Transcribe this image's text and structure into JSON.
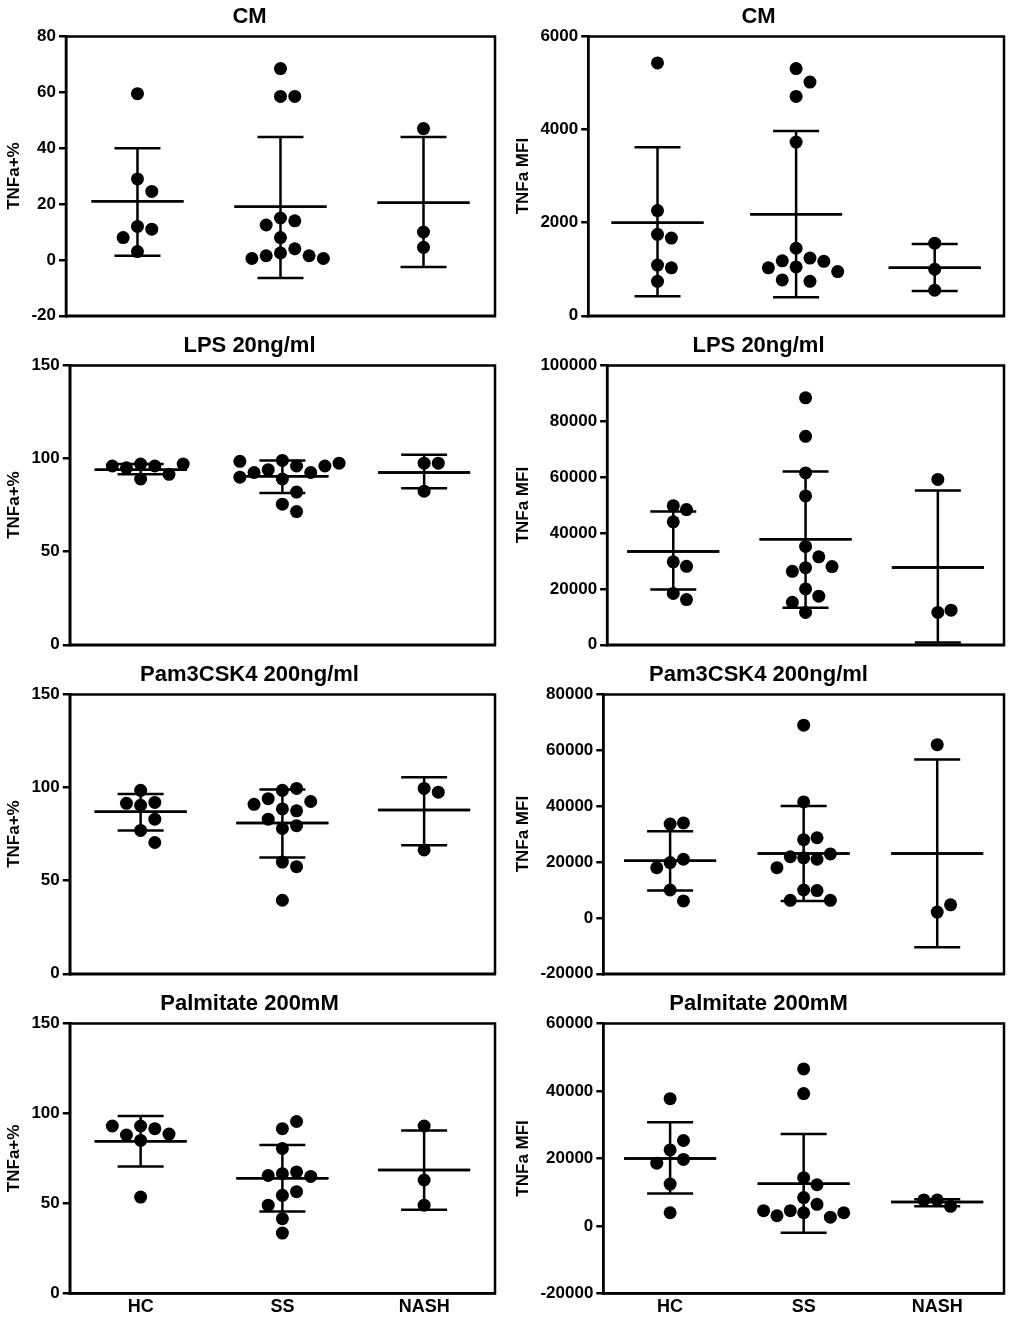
{
  "chart_data": [
    {
      "type": "scatter",
      "title": "CM",
      "ylabel": "TNFa+%",
      "categories": [
        "HC",
        "SS",
        "NASH"
      ],
      "ylim": [
        -20,
        80
      ],
      "yticks": [
        -20,
        0,
        20,
        40,
        60,
        80
      ],
      "tick_labels": "y",
      "series": [
        {
          "color": "#000000",
          "marker": "circle",
          "x": [
            "HC",
            "HC",
            "HC",
            "HC",
            "HC",
            "HC",
            "HC",
            "SS",
            "SS",
            "SS",
            "SS",
            "SS",
            "SS",
            "SS",
            "SS",
            "SS",
            "SS",
            "SS",
            "SS",
            "SS",
            "NASH",
            "NASH",
            "NASH"
          ],
          "values": [
            59.5,
            29,
            24.5,
            12,
            11,
            8,
            3,
            68.5,
            58.5,
            58.5,
            15,
            14,
            12.5,
            8,
            4,
            2.5,
            1.5,
            1.5,
            0.5,
            0.5,
            47,
            10,
            4.5
          ]
        },
        {
          "type": "box",
          "color": "#000000",
          "boxes": [
            {
              "low": 1.5,
              "q1": 21,
              "median": 21,
              "q3": 21,
              "high": 40
            },
            {
              "low": -6.5,
              "q1": 19,
              "median": 19,
              "q3": 19,
              "high": 44
            },
            {
              "low": -2.5,
              "q1": 20.5,
              "median": 20.5,
              "q3": 20.5,
              "high": 44
            }
          ]
        }
      ]
    },
    {
      "type": "scatter",
      "title": "CM",
      "ylabel": "TNFa MFI",
      "categories": [
        "HC",
        "SS",
        "NASH"
      ],
      "ylim": [
        0,
        6000
      ],
      "yticks": [
        0,
        2000,
        4000,
        6000
      ],
      "tick_labels": "y",
      "series": [
        {
          "color": "#000000",
          "marker": "circle",
          "x": [
            "HC",
            "HC",
            "HC",
            "HC",
            "HC",
            "HC",
            "HC",
            "SS",
            "SS",
            "SS",
            "SS",
            "SS",
            "SS",
            "SS",
            "SS",
            "SS",
            "SS",
            "SS",
            "SS",
            "SS",
            "NASH",
            "NASH",
            "NASH"
          ],
          "values": [
            5430,
            2260,
            1750,
            1670,
            1090,
            1030,
            740,
            5310,
            5020,
            4710,
            3730,
            1450,
            1240,
            1180,
            1170,
            1050,
            1030,
            950,
            740,
            770,
            1560,
            1000,
            550
          ]
        },
        {
          "type": "box",
          "color": "#000000",
          "boxes": [
            {
              "low": 420,
              "q1": 2000,
              "median": 2000,
              "q3": 2000,
              "high": 3620
            },
            {
              "low": 400,
              "q1": 2180,
              "median": 2180,
              "q3": 2180,
              "high": 3970
            },
            {
              "low": 530,
              "q1": 1030,
              "median": 1030,
              "q3": 1030,
              "high": 1540
            }
          ]
        }
      ]
    },
    {
      "type": "scatter",
      "title": "LPS 20ng/ml",
      "ylabel": "TNFa+%",
      "categories": [
        "HC",
        "SS",
        "NASH"
      ],
      "ylim": [
        0,
        150
      ],
      "yticks": [
        0,
        50,
        100,
        150
      ],
      "tick_labels": "y",
      "series": [
        {
          "color": "#000000",
          "marker": "circle",
          "x": [
            "HC",
            "HC",
            "HC",
            "HC",
            "HC",
            "HC",
            "HC",
            "SS",
            "SS",
            "SS",
            "SS",
            "SS",
            "SS",
            "SS",
            "SS",
            "SS",
            "SS",
            "SS",
            "SS",
            "SS",
            "NASH",
            "NASH",
            "NASH"
          ],
          "values": [
            97,
            96,
            95,
            89,
            91.5,
            96,
            97,
            99,
            96,
            94,
            89,
            92.5,
            92.5,
            96,
            90,
            97.5,
            98.5,
            82,
            75.5,
            71.5,
            97.5,
            97.5,
            82.5
          ]
        },
        {
          "type": "box",
          "color": "#000000",
          "boxes": [
            {
              "low": 91.5,
              "q1": 94,
              "median": 94,
              "q3": 94,
              "high": 97
            },
            {
              "low": 81.5,
              "q1": 90.5,
              "median": 90.5,
              "q3": 90.5,
              "high": 99
            },
            {
              "low": 84,
              "q1": 92.5,
              "median": 92.5,
              "q3": 92.5,
              "high": 102
            }
          ]
        }
      ]
    },
    {
      "type": "scatter",
      "title": "LPS 20ng/ml",
      "ylabel": "TNFa MFI",
      "categories": [
        "HC",
        "SS",
        "NASH"
      ],
      "ylim": [
        0,
        100000
      ],
      "yticks": [
        0,
        20000,
        40000,
        60000,
        80000,
        100000
      ],
      "tick_labels": "y",
      "series": [
        {
          "color": "#000000",
          "marker": "circle",
          "x": [
            "HC",
            "HC",
            "HC",
            "HC",
            "HC",
            "HC",
            "HC",
            "SS",
            "SS",
            "SS",
            "SS",
            "SS",
            "SS",
            "SS",
            "SS",
            "SS",
            "SS",
            "SS",
            "SS",
            "SS",
            "NASH",
            "NASH",
            "NASH"
          ],
          "values": [
            49800,
            48400,
            44000,
            29700,
            28100,
            18400,
            16200,
            88400,
            74600,
            61500,
            53300,
            35200,
            31500,
            27600,
            26300,
            28000,
            20000,
            17400,
            15200,
            11600,
            59200,
            11600,
            12400
          ]
        },
        {
          "type": "box",
          "color": "#000000",
          "boxes": [
            {
              "low": 19800,
              "q1": 33400,
              "median": 33400,
              "q3": 33400,
              "high": 47700
            },
            {
              "low": 13300,
              "q1": 37800,
              "median": 37800,
              "q3": 37800,
              "high": 62000
            },
            {
              "low": 800,
              "q1": 27700,
              "median": 27700,
              "q3": 27700,
              "high": 55200
            }
          ]
        }
      ]
    },
    {
      "type": "scatter",
      "title": "Pam3CSK4 200ng/ml",
      "ylabel": "TNFa+%",
      "categories": [
        "HC",
        "SS",
        "NASH"
      ],
      "ylim": [
        0,
        150
      ],
      "yticks": [
        0,
        50,
        100,
        150
      ],
      "tick_labels": "y",
      "series": [
        {
          "color": "#000000",
          "marker": "circle",
          "x": [
            "HC",
            "HC",
            "HC",
            "HC",
            "HC",
            "HC",
            "HC",
            "SS",
            "SS",
            "SS",
            "SS",
            "SS",
            "SS",
            "SS",
            "SS",
            "SS",
            "SS",
            "SS",
            "SS",
            "SS",
            "NASH",
            "NASH",
            "NASH"
          ],
          "values": [
            98.5,
            92,
            90.5,
            91.5,
            77,
            70.5,
            83,
            98.5,
            99.5,
            94,
            88.5,
            92.5,
            87.5,
            91,
            83,
            78,
            79.5,
            60,
            57.5,
            39.5,
            99.5,
            97.5,
            66.5
          ]
        },
        {
          "type": "box",
          "color": "#000000",
          "boxes": [
            {
              "low": 77,
              "q1": 87,
              "median": 87,
              "q3": 87,
              "high": 96.5
            },
            {
              "low": 62.5,
              "q1": 81,
              "median": 81,
              "q3": 81,
              "high": 99
            },
            {
              "low": 69,
              "q1": 88,
              "median": 88,
              "q3": 88,
              "high": 105.5
            }
          ]
        }
      ]
    },
    {
      "type": "scatter",
      "title": "Pam3CSK4 200ng/ml",
      "ylabel": "TNFa MFI",
      "categories": [
        "HC",
        "SS",
        "NASH"
      ],
      "ylim": [
        -20000,
        80000
      ],
      "yticks": [
        -20000,
        0,
        20000,
        40000,
        60000,
        80000
      ],
      "tick_labels": "y",
      "series": [
        {
          "color": "#000000",
          "marker": "circle",
          "x": [
            "HC",
            "HC",
            "HC",
            "HC",
            "HC",
            "HC",
            "HC",
            "SS",
            "SS",
            "SS",
            "SS",
            "SS",
            "SS",
            "SS",
            "SS",
            "SS",
            "SS",
            "SS",
            "SS",
            "SS",
            "NASH",
            "NASH",
            "NASH"
          ],
          "values": [
            33600,
            34000,
            19800,
            21000,
            18000,
            10000,
            6100,
            69000,
            41500,
            28000,
            28700,
            21500,
            21000,
            21900,
            22900,
            18000,
            10000,
            9800,
            6300,
            6300,
            62000,
            2100,
            4700
          ]
        },
        {
          "type": "box",
          "color": "#000000",
          "boxes": [
            {
              "low": 9800,
              "q1": 20500,
              "median": 20500,
              "q3": 20500,
              "high": 31000
            },
            {
              "low": 6100,
              "q1": 23100,
              "median": 23100,
              "q3": 23100,
              "high": 40100
            },
            {
              "low": -10500,
              "q1": 23100,
              "median": 23100,
              "q3": 23100,
              "high": 56700
            }
          ]
        }
      ]
    },
    {
      "type": "scatter",
      "title": "Palmitate 200mM",
      "ylabel": "TNFa+%",
      "categories": [
        "HC",
        "SS",
        "NASH"
      ],
      "ylim": [
        0,
        150
      ],
      "yticks": [
        0,
        50,
        100,
        150
      ],
      "series": [
        {
          "color": "#000000",
          "marker": "circle",
          "x": [
            "HC",
            "HC",
            "HC",
            "HC",
            "HC",
            "HC",
            "HC",
            "SS",
            "SS",
            "SS",
            "SS",
            "SS",
            "SS",
            "SS",
            "SS",
            "SS",
            "SS",
            "SS",
            "SS",
            "NASH",
            "NASH",
            "NASH"
          ],
          "values": [
            93,
            91.5,
            88,
            85,
            88.5,
            93,
            53.5,
            91.5,
            95.5,
            80.5,
            66.5,
            67.5,
            65.5,
            65,
            54.5,
            56.5,
            49,
            41.5,
            33.5,
            93,
            63,
            49
          ]
        },
        {
          "type": "box",
          "color": "#000000",
          "boxes": [
            {
              "low": 70.5,
              "q1": 84.5,
              "median": 84.5,
              "q3": 84.5,
              "high": 98.5
            },
            {
              "low": 45.5,
              "q1": 64,
              "median": 64,
              "q3": 64,
              "high": 82.5
            },
            {
              "low": 46.5,
              "q1": 68.5,
              "median": 68.5,
              "q3": 68.5,
              "high": 90.5
            }
          ]
        }
      ]
    },
    {
      "type": "scatter",
      "title": "Palmitate 200mM",
      "ylabel": "TNFa MFI",
      "categories": [
        "HC",
        "SS",
        "NASH"
      ],
      "ylim": [
        -20000,
        60000
      ],
      "yticks": [
        -20000,
        0,
        20000,
        40000,
        60000
      ],
      "series": [
        {
          "color": "#000000",
          "marker": "circle",
          "x": [
            "HC",
            "HC",
            "HC",
            "HC",
            "HC",
            "HC",
            "HC",
            "SS",
            "SS",
            "SS",
            "SS",
            "SS",
            "SS",
            "SS",
            "SS",
            "SS",
            "SS",
            "SS",
            "SS",
            "NASH",
            "NASH",
            "NASH"
          ],
          "values": [
            37700,
            22500,
            25300,
            19700,
            18600,
            12400,
            3900,
            46500,
            39200,
            14300,
            12200,
            8400,
            6400,
            4500,
            3900,
            2600,
            3000,
            3900,
            4500,
            7700,
            5800,
            7700
          ]
        },
        {
          "type": "box",
          "color": "#000000",
          "boxes": [
            {
              "low": 9600,
              "q1": 20000,
              "median": 20000,
              "q3": 20000,
              "high": 30700
            },
            {
              "low": -2000,
              "q1": 12500,
              "median": 12500,
              "q3": 12500,
              "high": 27200
            },
            {
              "low": 5800,
              "q1": 7100,
              "median": 7100,
              "q3": 7100,
              "high": 7900
            }
          ]
        }
      ]
    }
  ]
}
